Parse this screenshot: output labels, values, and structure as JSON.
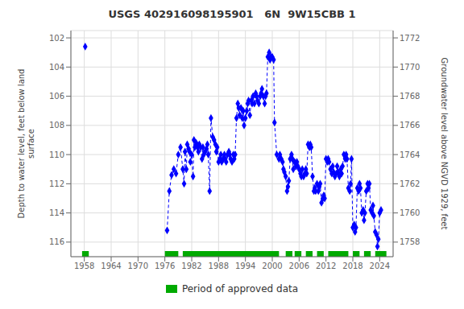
{
  "chart_data": {
    "type": "line",
    "title": "USGS 402916098195901   6N  9W15CBB 1",
    "y_label": "Depth to water level, feet below land\nsurface",
    "y2_label": "Groundwater level above NGVD 1929, feet",
    "xlim": [
      1955.0,
      2027.0
    ],
    "xticks": [
      1958,
      1964,
      1970,
      1976,
      1982,
      1988,
      1994,
      2000,
      2006,
      2012,
      2018,
      2024
    ],
    "ylim": [
      117.0,
      101.5
    ],
    "yticks": [
      102,
      104,
      106,
      108,
      110,
      112,
      114,
      116
    ],
    "y2lim": [
      1757.0,
      1772.5
    ],
    "y2ticks": [
      1772,
      1770,
      1768,
      1766,
      1764,
      1762,
      1760,
      1758
    ],
    "grid": true,
    "legend": "bottom",
    "series": [
      {
        "color": "#0000FF",
        "marker": "diamond",
        "line_style": "none",
        "x": [
          1958.2
        ],
        "values": [
          102.6
        ]
      },
      {
        "color": "#0000FF",
        "marker": "diamond",
        "line_style": "dashed",
        "x": [
          1976.5,
          1977.0,
          1977.5,
          1978.0,
          1978.5,
          1979.0,
          1979.5,
          1980.0,
          1980.3,
          1980.5,
          1980.8,
          1981.0,
          1981.3,
          1981.5,
          1981.7,
          1982.0,
          1982.3,
          1982.5,
          1982.7,
          1983.0,
          1983.3,
          1983.5,
          1983.7,
          1984.0,
          1984.3,
          1984.5,
          1984.7,
          1985.0,
          1985.3,
          1985.5,
          1985.7,
          1986.0,
          1986.3,
          1986.7,
          1987.0,
          1987.3,
          1987.5,
          1987.7,
          1988.0,
          1988.3,
          1988.5,
          1988.7,
          1989.0,
          1989.3,
          1989.5,
          1989.7,
          1990.0,
          1990.3,
          1990.5,
          1990.7,
          1991.0,
          1991.3,
          1991.5,
          1991.7,
          1992.0,
          1992.3,
          1992.5,
          1992.7,
          1993.0,
          1993.3,
          1993.5,
          1993.7,
          1994.0,
          1994.3,
          1994.5,
          1994.7,
          1995.0,
          1995.3,
          1995.5,
          1995.7,
          1996.0,
          1996.3,
          1996.5,
          1996.7,
          1997.0,
          1997.3,
          1997.5,
          1997.7,
          1998.0,
          1998.3,
          1998.5,
          1998.7,
          1999.0,
          1999.3,
          1999.5,
          1999.7,
          2000.0,
          2000.3,
          2000.5,
          2001.0,
          2001.5,
          2001.7,
          2002.0,
          2002.3,
          2002.5,
          2002.7,
          2003.0,
          2003.3,
          2003.5,
          2003.7,
          2004.0,
          2004.3,
          2004.5,
          2004.7,
          2005.0,
          2005.3,
          2005.5,
          2005.7,
          2006.0,
          2006.3,
          2006.5,
          2006.7,
          2007.0,
          2007.3,
          2007.5,
          2007.7,
          2008.0,
          2008.3,
          2008.5,
          2008.7,
          2009.0,
          2009.3,
          2009.5,
          2009.7,
          2010.0,
          2010.3,
          2010.5,
          2010.7,
          2011.0,
          2011.3,
          2011.5,
          2011.7,
          2012.0,
          2012.3,
          2012.5,
          2012.7,
          2013.0,
          2013.3,
          2013.5,
          2013.7,
          2014.0,
          2014.3,
          2014.5,
          2014.7,
          2015.0,
          2015.3,
          2015.5,
          2015.7,
          2016.0,
          2016.3,
          2016.5,
          2016.7,
          2017.0,
          2017.3,
          2017.5,
          2017.7,
          2018.0,
          2018.3,
          2018.5,
          2018.7,
          2019.0,
          2019.3,
          2019.5,
          2019.7,
          2020.0,
          2020.3,
          2020.5,
          2020.7,
          2021.0,
          2021.3,
          2021.5,
          2021.7,
          2022.0,
          2022.3,
          2022.5,
          2022.7,
          2023.0,
          2023.3,
          2023.5,
          2023.7,
          2024.0,
          2024.3
        ],
        "values": [
          115.2,
          112.5,
          111.4,
          111.0,
          111.3,
          110.0,
          109.5,
          111.0,
          112.0,
          109.8,
          111.0,
          109.3,
          109.6,
          109.8,
          110.5,
          110.0,
          111.5,
          109.0,
          109.5,
          109.2,
          109.5,
          109.8,
          109.3,
          109.5,
          110.3,
          109.5,
          110.0,
          109.8,
          109.6,
          109.3,
          110.0,
          112.5,
          107.5,
          108.8,
          109.0,
          109.3,
          109.8,
          109.5,
          110.5,
          110.3,
          110.0,
          110.5,
          110.3,
          110.0,
          110.3,
          110.5,
          110.0,
          109.8,
          110.0,
          110.3,
          110.5,
          110.0,
          110.3,
          110.0,
          107.5,
          106.5,
          106.8,
          107.3,
          106.8,
          107.5,
          107.0,
          108.0,
          107.5,
          107.0,
          106.5,
          106.3,
          107.3,
          106.3,
          106.5,
          106.0,
          106.5,
          105.8,
          106.0,
          106.3,
          106.5,
          106.0,
          105.8,
          105.5,
          106.0,
          106.5,
          106.0,
          105.8,
          103.3,
          103.0,
          103.5,
          103.3,
          103.3,
          103.5,
          107.8,
          110.0,
          110.3,
          110.0,
          110.3,
          110.5,
          111.0,
          111.2,
          111.5,
          112.5,
          112.2,
          111.8,
          110.3,
          110.0,
          110.3,
          111.0,
          110.5,
          110.8,
          110.5,
          110.8,
          111.0,
          111.3,
          111.5,
          111.0,
          111.5,
          111.3,
          111.0,
          111.3,
          109.3,
          109.5,
          109.3,
          109.5,
          111.5,
          112.5,
          112.3,
          112.5,
          112.0,
          112.5,
          112.2,
          112.0,
          113.3,
          113.0,
          112.8,
          113.0,
          110.3,
          110.5,
          110.3,
          110.5,
          111.0,
          111.3,
          110.8,
          111.2,
          111.5,
          111.3,
          110.8,
          111.2,
          111.5,
          111.0,
          111.3,
          110.8,
          110.0,
          110.3,
          110.0,
          110.3,
          112.3,
          112.5,
          112.0,
          110.3,
          115.0,
          114.8,
          115.3,
          115.0,
          112.3,
          112.5,
          112.0,
          112.3,
          114.0,
          113.8,
          114.5,
          114.0,
          112.5,
          112.0,
          112.3,
          112.0,
          113.8,
          114.0,
          113.5,
          114.2,
          115.3,
          115.5,
          116.3,
          115.8,
          114.0,
          113.8
        ]
      }
    ],
    "periods": {
      "name": "Period of approved data",
      "color": "#00AA00",
      "ranges": [
        [
          1957.5,
          1959.0
        ],
        [
          1976.0,
          1979.0
        ],
        [
          1980.0,
          2001.5
        ],
        [
          2003.0,
          2004.5
        ],
        [
          2005.0,
          2006.5
        ],
        [
          2007.5,
          2009.0
        ],
        [
          2010.0,
          2011.5
        ],
        [
          2012.5,
          2017.0
        ],
        [
          2018.0,
          2019.5
        ],
        [
          2020.5,
          2022.0
        ],
        [
          2023.0,
          2025.5
        ]
      ]
    }
  }
}
